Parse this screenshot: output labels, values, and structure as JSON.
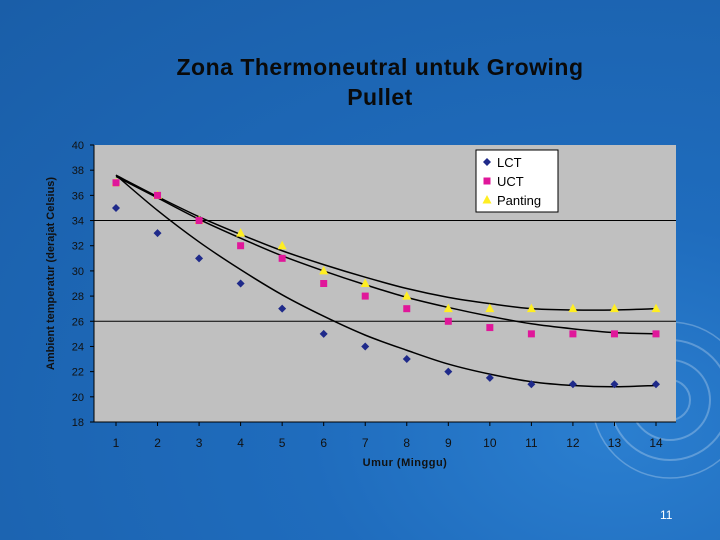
{
  "slide": {
    "title_line1": "Zona Thermoneutral  untuk Growing",
    "title_line2": "Pullet",
    "page_number": "11"
  },
  "colors": {
    "background": "#1f6cbd",
    "plot_area": "#c0c0c0",
    "lct": "#1f2a8a",
    "uct": "#e0179a",
    "panting": "#ffee22",
    "axis_text": "#111111"
  },
  "chart_data": {
    "type": "scatter",
    "xlabel": "Umur (Minggu)",
    "ylabel": "Ambient temperatur (derajat Celsius)",
    "x": [
      1,
      2,
      3,
      4,
      5,
      6,
      7,
      8,
      9,
      10,
      11,
      12,
      13,
      14
    ],
    "x_tick_labels": [
      "1",
      "2",
      "3",
      "4",
      "5",
      "6",
      "7",
      "8",
      "9",
      "10",
      "11",
      "12",
      "13",
      "14"
    ],
    "y_tick_labels": [
      "18",
      "20",
      "22",
      "24",
      "26",
      "28",
      "30",
      "32",
      "34",
      "36",
      "38",
      "40"
    ],
    "ylim": [
      18,
      40
    ],
    "gridlines_y": [
      26,
      34
    ],
    "legend_position": "top-right",
    "trendlines": true,
    "series": [
      {
        "name": "LCT",
        "marker": "diamond",
        "values": [
          35.0,
          33.0,
          31.0,
          29.0,
          27.0,
          25.0,
          24.0,
          23.0,
          22.0,
          21.5,
          21.0,
          21.0,
          21.0,
          21.0
        ],
        "trend": [
          37.6,
          34.8,
          32.3,
          30.1,
          28.1,
          26.4,
          24.9,
          23.7,
          22.6,
          21.8,
          21.2,
          20.9,
          20.8,
          20.9
        ]
      },
      {
        "name": "UCT",
        "marker": "square",
        "values": [
          37.0,
          36.0,
          34.0,
          32.0,
          31.0,
          29.0,
          28.0,
          27.0,
          26.0,
          25.5,
          25.0,
          25.0,
          25.0,
          25.0
        ],
        "trend": [
          37.5,
          35.8,
          34.1,
          32.6,
          31.2,
          30.0,
          28.9,
          27.9,
          27.1,
          26.4,
          25.8,
          25.4,
          25.1,
          25.0
        ]
      },
      {
        "name": "Panting",
        "marker": "triangle",
        "values": [
          37.0,
          36.0,
          34.0,
          33.0,
          32.0,
          30.0,
          29.0,
          28.0,
          27.0,
          27.0,
          27.0,
          27.0,
          27.0,
          27.0
        ],
        "trend": [
          37.6,
          35.9,
          34.3,
          32.9,
          31.6,
          30.5,
          29.5,
          28.6,
          27.9,
          27.4,
          27.0,
          26.9,
          26.9,
          27.0
        ]
      }
    ]
  }
}
